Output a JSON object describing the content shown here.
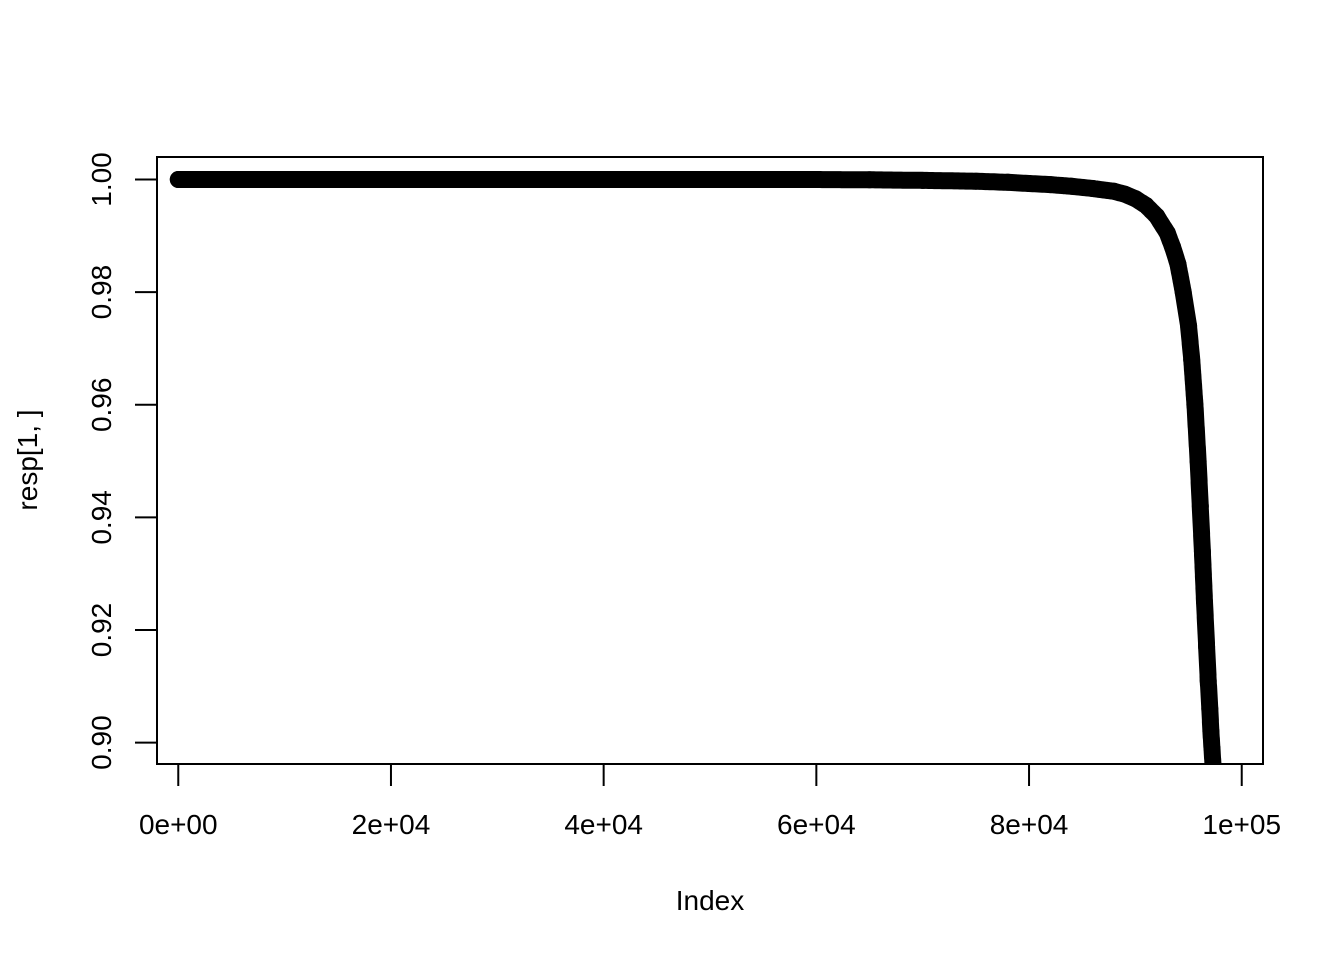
{
  "chart_data": {
    "type": "scatter",
    "title": "",
    "xlabel": "Index",
    "ylabel": "resp[1, ]",
    "xlim": [
      -2000,
      102000
    ],
    "ylim": [
      0.8962,
      1.004
    ],
    "x_ticks": [
      0,
      20000,
      40000,
      60000,
      80000,
      100000
    ],
    "x_tick_labels": [
      "0e+00",
      "2e+04",
      "4e+04",
      "6e+04",
      "8e+04",
      "1e+05"
    ],
    "y_ticks": [
      0.9,
      0.92,
      0.94,
      0.96,
      0.98,
      1.0
    ],
    "y_tick_labels": [
      "0.90",
      "0.92",
      "0.94",
      "0.96",
      "0.98",
      "1.00"
    ],
    "grid": false,
    "legend": "none",
    "point_color": "#000000",
    "series": [
      {
        "x": [
          0,
          10000,
          20000,
          30000,
          40000,
          50000,
          60000,
          65000,
          70000,
          75000,
          78000,
          80000,
          82000,
          84000,
          86000,
          88000,
          89000,
          90000,
          91000,
          92000,
          93000,
          93500,
          94000,
          94500,
          95000,
          95300,
          95600,
          95900,
          96100,
          96300,
          96500,
          96700,
          96850,
          97000,
          97100,
          97200,
          97300
        ],
        "y": [
          1.0,
          1.0,
          1.0,
          1.0,
          1.0,
          1.0,
          1.0,
          0.99995,
          0.99985,
          0.9997,
          0.9995,
          0.9993,
          0.9991,
          0.9988,
          0.9984,
          0.9979,
          0.9974,
          0.9966,
          0.9954,
          0.9935,
          0.9905,
          0.988,
          0.985,
          0.98,
          0.974,
          0.968,
          0.96,
          0.95,
          0.942,
          0.934,
          0.925,
          0.917,
          0.911,
          0.906,
          0.902,
          0.899,
          0.896
        ]
      }
    ]
  }
}
